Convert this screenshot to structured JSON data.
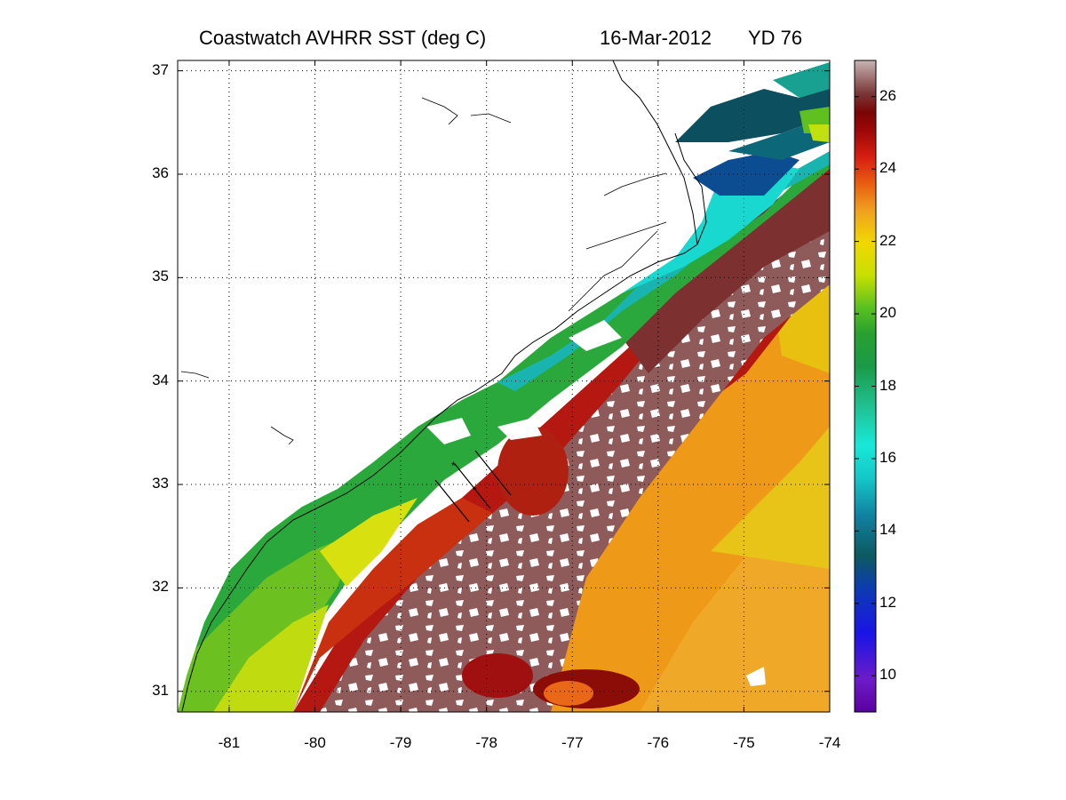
{
  "title": {
    "main": "Coastwatch   AVHRR   SST  (deg C)",
    "date": "16-Mar-2012",
    "yearday": "YD 76"
  },
  "axes": {
    "lon_ticks": [
      "-81",
      "-80",
      "-79",
      "-78",
      "-77",
      "-76",
      "-75",
      "-74"
    ],
    "lat_ticks": [
      "37",
      "36",
      "35",
      "34",
      "33",
      "32",
      "31"
    ],
    "lon_range": [
      -81.6,
      -74
    ],
    "lat_range": [
      30.8,
      37.1
    ]
  },
  "colorbar": {
    "ticks": [
      "26",
      "24",
      "22",
      "20",
      "18",
      "16",
      "14",
      "12",
      "10"
    ],
    "range": [
      9,
      27
    ],
    "unit": "deg C"
  },
  "colors": {
    "land": "#ffffff",
    "warm_core": "#8c5555",
    "gulf_stream": "#a01410",
    "offshore": "#f09018",
    "shelf": "#28a848",
    "cold_shelf": "#18b8c0"
  }
}
